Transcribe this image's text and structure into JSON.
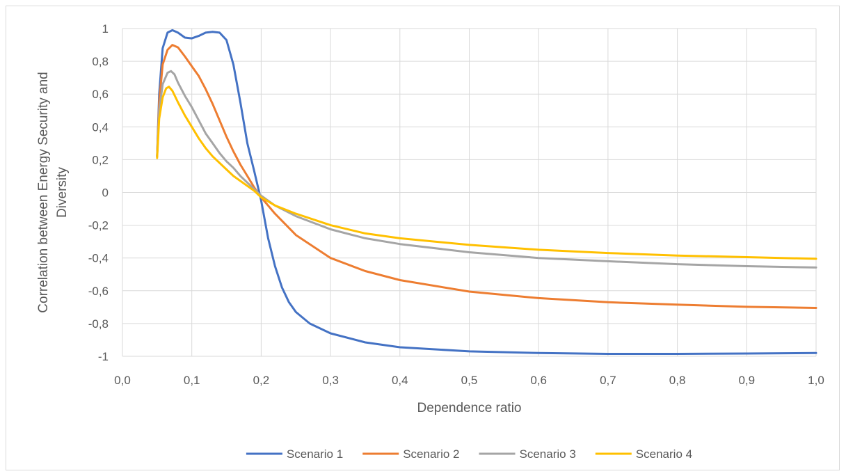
{
  "chart_data": {
    "type": "line",
    "xlabel": "Dependence ratio",
    "ylabel": "Correlation between Energy Security and Diversity",
    "xlim": [
      0,
      1
    ],
    "ylim": [
      -1,
      1
    ],
    "x_ticks": [
      "0,0",
      "0,1",
      "0,2",
      "0,3",
      "0,4",
      "0,5",
      "0,6",
      "0,7",
      "0,8",
      "0,9",
      "1,0"
    ],
    "y_ticks": [
      "1",
      "0,8",
      "0,6",
      "0,4",
      "0,2",
      "0",
      "-0,2",
      "-0,4",
      "-0,6",
      "-0,8",
      "-1"
    ],
    "grid": true,
    "legend_position": "bottom",
    "series": [
      {
        "name": "Scenario 1",
        "color": "#4472c4",
        "points": [
          [
            0.05,
            0.22
          ],
          [
            0.053,
            0.6
          ],
          [
            0.058,
            0.88
          ],
          [
            0.065,
            0.975
          ],
          [
            0.072,
            0.99
          ],
          [
            0.08,
            0.975
          ],
          [
            0.09,
            0.945
          ],
          [
            0.1,
            0.94
          ],
          [
            0.11,
            0.955
          ],
          [
            0.12,
            0.975
          ],
          [
            0.13,
            0.98
          ],
          [
            0.14,
            0.975
          ],
          [
            0.15,
            0.93
          ],
          [
            0.16,
            0.78
          ],
          [
            0.17,
            0.55
          ],
          [
            0.18,
            0.3
          ],
          [
            0.19,
            0.13
          ],
          [
            0.2,
            -0.05
          ],
          [
            0.21,
            -0.28
          ],
          [
            0.22,
            -0.45
          ],
          [
            0.23,
            -0.58
          ],
          [
            0.24,
            -0.67
          ],
          [
            0.25,
            -0.73
          ],
          [
            0.27,
            -0.8
          ],
          [
            0.3,
            -0.86
          ],
          [
            0.35,
            -0.915
          ],
          [
            0.4,
            -0.945
          ],
          [
            0.5,
            -0.97
          ],
          [
            0.6,
            -0.98
          ],
          [
            0.7,
            -0.985
          ],
          [
            0.8,
            -0.985
          ],
          [
            0.9,
            -0.983
          ],
          [
            1.0,
            -0.98
          ]
        ]
      },
      {
        "name": "Scenario 2",
        "color": "#ed7d31",
        "points": [
          [
            0.05,
            0.22
          ],
          [
            0.053,
            0.55
          ],
          [
            0.058,
            0.78
          ],
          [
            0.065,
            0.87
          ],
          [
            0.072,
            0.9
          ],
          [
            0.08,
            0.885
          ],
          [
            0.09,
            0.83
          ],
          [
            0.1,
            0.77
          ],
          [
            0.11,
            0.71
          ],
          [
            0.12,
            0.63
          ],
          [
            0.13,
            0.54
          ],
          [
            0.14,
            0.44
          ],
          [
            0.15,
            0.34
          ],
          [
            0.16,
            0.25
          ],
          [
            0.17,
            0.17
          ],
          [
            0.18,
            0.1
          ],
          [
            0.19,
            0.03
          ],
          [
            0.2,
            -0.03
          ],
          [
            0.22,
            -0.13
          ],
          [
            0.25,
            -0.26
          ],
          [
            0.3,
            -0.4
          ],
          [
            0.35,
            -0.48
          ],
          [
            0.4,
            -0.535
          ],
          [
            0.5,
            -0.605
          ],
          [
            0.6,
            -0.645
          ],
          [
            0.7,
            -0.67
          ],
          [
            0.8,
            -0.685
          ],
          [
            0.9,
            -0.698
          ],
          [
            1.0,
            -0.705
          ]
        ]
      },
      {
        "name": "Scenario 3",
        "color": "#a5a5a5",
        "points": [
          [
            0.05,
            0.22
          ],
          [
            0.053,
            0.5
          ],
          [
            0.058,
            0.66
          ],
          [
            0.065,
            0.73
          ],
          [
            0.07,
            0.74
          ],
          [
            0.075,
            0.72
          ],
          [
            0.08,
            0.67
          ],
          [
            0.09,
            0.59
          ],
          [
            0.1,
            0.52
          ],
          [
            0.11,
            0.44
          ],
          [
            0.12,
            0.36
          ],
          [
            0.13,
            0.3
          ],
          [
            0.14,
            0.24
          ],
          [
            0.15,
            0.19
          ],
          [
            0.16,
            0.15
          ],
          [
            0.17,
            0.1
          ],
          [
            0.18,
            0.06
          ],
          [
            0.19,
            0.02
          ],
          [
            0.2,
            -0.02
          ],
          [
            0.22,
            -0.08
          ],
          [
            0.25,
            -0.145
          ],
          [
            0.3,
            -0.225
          ],
          [
            0.35,
            -0.28
          ],
          [
            0.4,
            -0.315
          ],
          [
            0.5,
            -0.365
          ],
          [
            0.6,
            -0.4
          ],
          [
            0.7,
            -0.42
          ],
          [
            0.8,
            -0.438
          ],
          [
            0.9,
            -0.45
          ],
          [
            1.0,
            -0.458
          ]
        ]
      },
      {
        "name": "Scenario 4",
        "color": "#ffc000",
        "points": [
          [
            0.05,
            0.21
          ],
          [
            0.053,
            0.45
          ],
          [
            0.058,
            0.58
          ],
          [
            0.063,
            0.635
          ],
          [
            0.067,
            0.645
          ],
          [
            0.072,
            0.62
          ],
          [
            0.08,
            0.55
          ],
          [
            0.09,
            0.47
          ],
          [
            0.1,
            0.4
          ],
          [
            0.11,
            0.33
          ],
          [
            0.12,
            0.27
          ],
          [
            0.13,
            0.22
          ],
          [
            0.14,
            0.18
          ],
          [
            0.15,
            0.14
          ],
          [
            0.16,
            0.1
          ],
          [
            0.17,
            0.07
          ],
          [
            0.18,
            0.04
          ],
          [
            0.19,
            0.01
          ],
          [
            0.2,
            -0.03
          ],
          [
            0.22,
            -0.08
          ],
          [
            0.25,
            -0.13
          ],
          [
            0.3,
            -0.2
          ],
          [
            0.35,
            -0.25
          ],
          [
            0.4,
            -0.28
          ],
          [
            0.5,
            -0.32
          ],
          [
            0.6,
            -0.35
          ],
          [
            0.7,
            -0.37
          ],
          [
            0.8,
            -0.385
          ],
          [
            0.9,
            -0.395
          ],
          [
            1.0,
            -0.405
          ]
        ]
      }
    ]
  }
}
